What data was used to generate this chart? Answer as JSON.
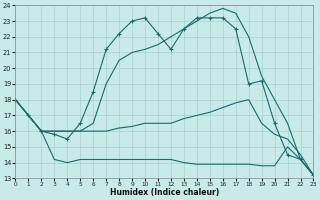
{
  "xlabel": "Humidex (Indice chaleur)",
  "bg_color": "#c8eae8",
  "grid_color": "#a8d4d0",
  "line_color": "#1a6b6b",
  "xlim": [
    0,
    23
  ],
  "ylim": [
    13,
    24
  ],
  "xticks": [
    0,
    1,
    2,
    3,
    4,
    5,
    6,
    7,
    8,
    9,
    10,
    11,
    12,
    13,
    14,
    15,
    16,
    17,
    18,
    19,
    20,
    21,
    22,
    23
  ],
  "yticks": [
    13,
    14,
    15,
    16,
    17,
    18,
    19,
    20,
    21,
    22,
    23,
    24
  ],
  "curve1_x": [
    0,
    1,
    2,
    3,
    4,
    5,
    6,
    7,
    8,
    9,
    10,
    11,
    12,
    13,
    14,
    15,
    16,
    17,
    18,
    19,
    20,
    21,
    22,
    23
  ],
  "curve1_y": [
    18,
    17,
    16,
    15.8,
    15.5,
    16.5,
    18.5,
    21.2,
    22.2,
    23,
    23.2,
    22.2,
    21.2,
    22.5,
    23.2,
    23.2,
    23.2,
    22.5,
    19,
    19.2,
    16.5,
    14.5,
    14.2,
    13.2
  ],
  "curve2_x": [
    0,
    1,
    2,
    3,
    4,
    5,
    6,
    7,
    8,
    9,
    10,
    11,
    12,
    13,
    14,
    15,
    16,
    17,
    18,
    19,
    20,
    21,
    22,
    23
  ],
  "curve2_y": [
    18,
    17,
    16,
    16,
    16,
    16,
    16.5,
    19,
    20.5,
    21,
    21.2,
    21.5,
    22,
    22.5,
    23,
    23.5,
    23.8,
    23.5,
    22,
    19.5,
    18,
    16.5,
    14.2,
    13.2
  ],
  "curve3_x": [
    0,
    1,
    2,
    3,
    4,
    5,
    6,
    7,
    8,
    9,
    10,
    11,
    12,
    13,
    14,
    15,
    16,
    17,
    18,
    19,
    20,
    21,
    22,
    23
  ],
  "curve3_y": [
    18,
    17,
    16,
    16,
    16,
    16,
    16,
    16,
    16.2,
    16.3,
    16.5,
    16.5,
    16.5,
    16.8,
    17,
    17.2,
    17.5,
    17.8,
    18,
    16.5,
    15.8,
    15.5,
    14.5,
    13.2
  ],
  "curve4_x": [
    0,
    1,
    2,
    3,
    4,
    5,
    6,
    7,
    8,
    9,
    10,
    11,
    12,
    13,
    14,
    15,
    16,
    17,
    18,
    19,
    20,
    21,
    22,
    23
  ],
  "curve4_y": [
    18,
    17,
    16,
    14.2,
    14,
    14.2,
    14.2,
    14.2,
    14.2,
    14.2,
    14.2,
    14.2,
    14.2,
    14.0,
    13.9,
    13.9,
    13.9,
    13.9,
    13.9,
    13.8,
    13.8,
    15.0,
    14.2,
    13.2
  ]
}
